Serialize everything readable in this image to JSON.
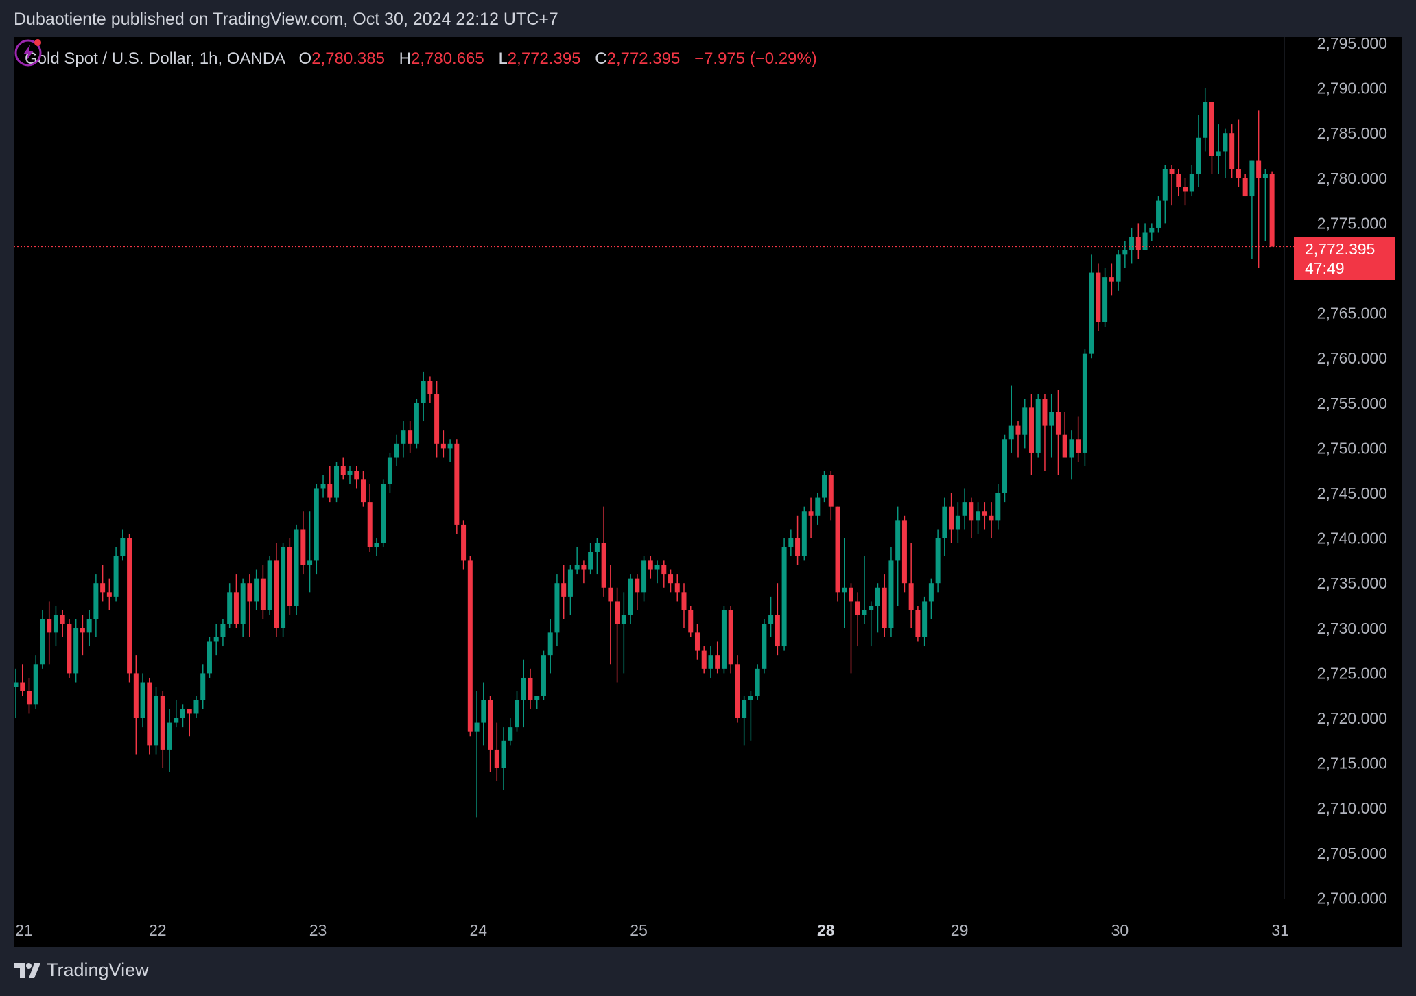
{
  "header": {
    "published": "Dubaotiente published on TradingView.com, Oct 30, 2024 22:12 UTC+7"
  },
  "legend": {
    "symbol": "Gold Spot / U.S. Dollar, 1h, OANDA",
    "o_label": "O",
    "o_value": "2,780.385",
    "h_label": "H",
    "h_value": "2,780.665",
    "l_label": "L",
    "l_value": "2,772.395",
    "c_label": "C",
    "c_value": "2,772.395",
    "change": "−7.975 (−0.29%)"
  },
  "last_price": {
    "value": "2,772.395",
    "countdown": "47:49"
  },
  "footer": {
    "brand": "TradingView"
  },
  "colors": {
    "up": "#089981",
    "down": "#f23645",
    "background": "#000000",
    "frame": "#1e222d",
    "axis_text": "#b2b5be"
  },
  "icons": {
    "brand_icon": "tradingview-logo-icon",
    "alert_icon": "lightning-bolt-icon"
  },
  "chart_data": {
    "type": "candlestick",
    "symbol": "Gold Spot / U.S. Dollar",
    "interval": "1h",
    "exchange": "OANDA",
    "ylim": [
      2697,
      2797
    ],
    "y_ticks": [
      2700,
      2705,
      2710,
      2715,
      2720,
      2725,
      2730,
      2735,
      2740,
      2745,
      2750,
      2755,
      2760,
      2765,
      2770,
      2775,
      2780,
      2785,
      2790,
      2795
    ],
    "y_tick_labels": [
      "2,700.000",
      "2,705.000",
      "2,710.000",
      "2,715.000",
      "2,720.000",
      "2,725.000",
      "2,730.000",
      "2,735.000",
      "2,740.000",
      "2,745.000",
      "2,750.000",
      "2,755.000",
      "2,760.000",
      "2,765.000",
      "2,770.000",
      "2,775.000",
      "2,780.000",
      "2,785.000",
      "2,790.000",
      "2,795.000"
    ],
    "x_ticks": [
      {
        "label": "21",
        "index": 0,
        "bold": false
      },
      {
        "label": "22",
        "index": 20,
        "bold": false
      },
      {
        "label": "23",
        "index": 44,
        "bold": false
      },
      {
        "label": "24",
        "index": 68,
        "bold": false
      },
      {
        "label": "25",
        "index": 92,
        "bold": false
      },
      {
        "label": "28",
        "index": 120,
        "bold": true
      },
      {
        "label": "29",
        "index": 140,
        "bold": false
      },
      {
        "label": "30",
        "index": 164,
        "bold": false
      },
      {
        "label": "31",
        "index": 188,
        "bold": false
      }
    ],
    "last_close": 2772.395,
    "candles": [
      [
        2723.5,
        2725.5,
        2720,
        2724
      ],
      [
        2724,
        2726,
        2722.5,
        2723
      ],
      [
        2723,
        2724.5,
        2720.5,
        2721.5
      ],
      [
        2721.5,
        2727,
        2721,
        2726
      ],
      [
        2726,
        2732,
        2725.5,
        2731
      ],
      [
        2731,
        2733,
        2726,
        2729.5
      ],
      [
        2729.5,
        2732.5,
        2728,
        2731.5
      ],
      [
        2731.5,
        2732,
        2729,
        2730.5
      ],
      [
        2730.5,
        2731,
        2724.5,
        2725
      ],
      [
        2725,
        2731,
        2724,
        2730
      ],
      [
        2730,
        2731.5,
        2727,
        2729.5
      ],
      [
        2729.5,
        2732,
        2728,
        2731
      ],
      [
        2731,
        2736,
        2729,
        2735
      ],
      [
        2735,
        2737,
        2733,
        2734
      ],
      [
        2734,
        2735.5,
        2732,
        2733.5
      ],
      [
        2733.5,
        2739,
        2733,
        2738
      ],
      [
        2738,
        2741,
        2737.5,
        2740
      ],
      [
        2740,
        2740.5,
        2724,
        2725
      ],
      [
        2725,
        2727,
        2716,
        2720
      ],
      [
        2720,
        2725,
        2719,
        2724
      ],
      [
        2724,
        2724.5,
        2716,
        2717
      ],
      [
        2717,
        2723.5,
        2716,
        2722.5
      ],
      [
        2722.5,
        2723,
        2714.5,
        2716.5
      ],
      [
        2716.5,
        2721,
        2714,
        2719.5
      ],
      [
        2719.5,
        2722,
        2719,
        2720
      ],
      [
        2720,
        2721.5,
        2719,
        2721
      ],
      [
        2721,
        2721,
        2718,
        2720.5
      ],
      [
        2720.5,
        2722.5,
        2720,
        2722
      ],
      [
        2722,
        2726,
        2721,
        2725
      ],
      [
        2725,
        2729,
        2724.5,
        2728.5
      ],
      [
        2728.5,
        2730.5,
        2727,
        2729
      ],
      [
        2729,
        2731,
        2728,
        2730.5
      ],
      [
        2730.5,
        2735,
        2730,
        2734
      ],
      [
        2734,
        2736,
        2730,
        2730.5
      ],
      [
        2730.5,
        2735.5,
        2729,
        2735
      ],
      [
        2735,
        2736,
        2729,
        2733
      ],
      [
        2733,
        2736.5,
        2732,
        2735.5
      ],
      [
        2735.5,
        2737,
        2731,
        2732
      ],
      [
        2732,
        2738,
        2731.5,
        2737.5
      ],
      [
        2737.5,
        2739.5,
        2729,
        2730
      ],
      [
        2730,
        2739.5,
        2729,
        2739
      ],
      [
        2739,
        2740,
        2731.5,
        2732.5
      ],
      [
        2732.5,
        2741.5,
        2731.5,
        2741
      ],
      [
        2741,
        2743,
        2736,
        2737
      ],
      [
        2737,
        2743,
        2734,
        2737.5
      ],
      [
        2737.5,
        2746,
        2736,
        2745.5
      ],
      [
        2745.5,
        2747,
        2744.5,
        2746
      ],
      [
        2746,
        2748,
        2744,
        2744.5
      ],
      [
        2744.5,
        2748.5,
        2744,
        2748
      ],
      [
        2748,
        2749,
        2746.5,
        2747
      ],
      [
        2747,
        2748,
        2746,
        2747.5
      ],
      [
        2747.5,
        2748,
        2745.5,
        2746.5
      ],
      [
        2746.5,
        2747.5,
        2743.5,
        2744
      ],
      [
        2744,
        2746,
        2738.5,
        2739
      ],
      [
        2739,
        2740,
        2738,
        2739.5
      ],
      [
        2739.5,
        2746.5,
        2739,
        2746
      ],
      [
        2746,
        2749.5,
        2745,
        2749
      ],
      [
        2749,
        2751.5,
        2748,
        2750.5
      ],
      [
        2750.5,
        2753,
        2749,
        2752
      ],
      [
        2752,
        2753,
        2749.5,
        2750.5
      ],
      [
        2750.5,
        2755.5,
        2750,
        2755
      ],
      [
        2755,
        2758.5,
        2753,
        2757.5
      ],
      [
        2757.5,
        2758,
        2755,
        2756
      ],
      [
        2756,
        2757.5,
        2749,
        2750.5
      ],
      [
        2750.5,
        2752,
        2749,
        2750
      ],
      [
        2750,
        2751,
        2748.5,
        2750.5
      ],
      [
        2750.5,
        2751,
        2740.5,
        2741.5
      ],
      [
        2741.5,
        2742,
        2736.5,
        2737.5
      ],
      [
        2737.5,
        2738,
        2718,
        2718.5
      ],
      [
        2718.5,
        2723,
        2709,
        2719.5
      ],
      [
        2719.5,
        2724,
        2717,
        2722
      ],
      [
        2722,
        2722.5,
        2714,
        2716.5
      ],
      [
        2716.5,
        2719.5,
        2713,
        2714.5
      ],
      [
        2714.5,
        2719,
        2712,
        2717.5
      ],
      [
        2717.5,
        2720,
        2717,
        2719
      ],
      [
        2719,
        2723,
        2718.5,
        2722
      ],
      [
        2722,
        2726.5,
        2719,
        2724.5
      ],
      [
        2724.5,
        2725.5,
        2721,
        2722
      ],
      [
        2722,
        2722.5,
        2721,
        2722.5
      ],
      [
        2722.5,
        2727.5,
        2722,
        2727
      ],
      [
        2727,
        2731,
        2725,
        2729.5
      ],
      [
        2729.5,
        2736,
        2728,
        2735
      ],
      [
        2735,
        2737,
        2731,
        2733.5
      ],
      [
        2733.5,
        2737,
        2731.5,
        2736.5
      ],
      [
        2736.5,
        2739,
        2736,
        2737
      ],
      [
        2737,
        2737.5,
        2735,
        2736.5
      ],
      [
        2736.5,
        2739.5,
        2736,
        2738.5
      ],
      [
        2738.5,
        2740,
        2736,
        2739.5
      ],
      [
        2739.5,
        2743.5,
        2733.5,
        2734.5
      ],
      [
        2734.5,
        2737,
        2726,
        2733
      ],
      [
        2733,
        2734.5,
        2724,
        2730.5
      ],
      [
        2730.5,
        2734,
        2725,
        2731.5
      ],
      [
        2731.5,
        2736,
        2730.5,
        2735.5
      ],
      [
        2735.5,
        2736,
        2732,
        2734
      ],
      [
        2734,
        2738,
        2733,
        2737.5
      ],
      [
        2737.5,
        2738,
        2735.5,
        2736.5
      ],
      [
        2736.5,
        2737.5,
        2735,
        2737
      ],
      [
        2737,
        2737.5,
        2734.5,
        2736
      ],
      [
        2736,
        2736.5,
        2734,
        2735
      ],
      [
        2735,
        2736,
        2733,
        2734
      ],
      [
        2734,
        2735,
        2730,
        2732
      ],
      [
        2732,
        2732.5,
        2729,
        2729.5
      ],
      [
        2729.5,
        2730.5,
        2726.5,
        2727.5
      ],
      [
        2727.5,
        2728,
        2725,
        2725.5
      ],
      [
        2725.5,
        2728,
        2724.5,
        2727
      ],
      [
        2727,
        2728.5,
        2725,
        2725.5
      ],
      [
        2725.5,
        2732.5,
        2725,
        2732
      ],
      [
        2732,
        2732.5,
        2725,
        2726
      ],
      [
        2726,
        2727,
        2719.5,
        2720
      ],
      [
        2720,
        2722.5,
        2717,
        2722
      ],
      [
        2722,
        2723,
        2717.5,
        2722.5
      ],
      [
        2722.5,
        2726,
        2722,
        2725.5
      ],
      [
        2725.5,
        2731,
        2725,
        2730.5
      ],
      [
        2730.5,
        2733.5,
        2729,
        2731.5
      ],
      [
        2731.5,
        2735,
        2727,
        2728
      ],
      [
        2728,
        2740,
        2727.5,
        2739
      ],
      [
        2739,
        2741,
        2738,
        2740
      ],
      [
        2740,
        2742.5,
        2737,
        2738
      ],
      [
        2738,
        2743.5,
        2737.5,
        2743
      ],
      [
        2743,
        2744.5,
        2740,
        2742.5
      ],
      [
        2742.5,
        2745,
        2741.5,
        2744.5
      ],
      [
        2744.5,
        2747.5,
        2744,
        2747
      ],
      [
        2747,
        2747.5,
        2742,
        2743.5
      ],
      [
        2743.5,
        2743.5,
        2733,
        2734
      ],
      [
        2734,
        2740,
        2730,
        2734.5
      ],
      [
        2734.5,
        2735,
        2725,
        2733
      ],
      [
        2733,
        2734,
        2728,
        2731.5
      ],
      [
        2731.5,
        2738,
        2730.5,
        2732
      ],
      [
        2732,
        2733,
        2728,
        2732.5
      ],
      [
        2732.5,
        2735,
        2729.5,
        2734.5
      ],
      [
        2734.5,
        2736,
        2729,
        2730
      ],
      [
        2730,
        2739,
        2729,
        2737.5
      ],
      [
        2737.5,
        2743.5,
        2732.5,
        2742
      ],
      [
        2742,
        2742.5,
        2734,
        2735
      ],
      [
        2735,
        2739.5,
        2730,
        2732
      ],
      [
        2732,
        2732.5,
        2728.5,
        2729
      ],
      [
        2729,
        2733.5,
        2728,
        2733
      ],
      [
        2733,
        2735.5,
        2731,
        2735
      ],
      [
        2735,
        2741,
        2734,
        2740
      ],
      [
        2740,
        2744.5,
        2738,
        2743.5
      ],
      [
        2743.5,
        2745,
        2739.5,
        2741
      ],
      [
        2741,
        2744,
        2739.5,
        2742.5
      ],
      [
        2742.5,
        2745.5,
        2741,
        2744
      ],
      [
        2744,
        2744.5,
        2740,
        2742
      ],
      [
        2742,
        2744,
        2740.5,
        2743
      ],
      [
        2743,
        2744,
        2741,
        2742.5
      ],
      [
        2742.5,
        2744,
        2740,
        2742
      ],
      [
        2742,
        2746,
        2741,
        2745
      ],
      [
        2745,
        2751.5,
        2744,
        2751
      ],
      [
        2751,
        2757,
        2749.5,
        2752.5
      ],
      [
        2752.5,
        2753,
        2749,
        2751.5
      ],
      [
        2751.5,
        2755.5,
        2750,
        2754.5
      ],
      [
        2754.5,
        2756,
        2747,
        2749.5
      ],
      [
        2749.5,
        2756,
        2749,
        2755.5
      ],
      [
        2755.5,
        2756,
        2747.5,
        2752.5
      ],
      [
        2752.5,
        2756,
        2749,
        2754
      ],
      [
        2754,
        2756.5,
        2747,
        2751.5
      ],
      [
        2751.5,
        2754,
        2749,
        2749
      ],
      [
        2749,
        2752,
        2746.5,
        2751
      ],
      [
        2751,
        2753.5,
        2748.5,
        2749.5
      ],
      [
        2749.5,
        2761,
        2748,
        2760.5
      ],
      [
        2760.5,
        2771.5,
        2760,
        2769.5
      ],
      [
        2769.5,
        2770.5,
        2763,
        2764
      ],
      [
        2764,
        2770,
        2763.5,
        2769
      ],
      [
        2769,
        2770.5,
        2767,
        2768.5
      ],
      [
        2768.5,
        2772,
        2767.5,
        2771.5
      ],
      [
        2771.5,
        2773,
        2770,
        2772
      ],
      [
        2772,
        2774.5,
        2770.5,
        2773.5
      ],
      [
        2773.5,
        2775,
        2771,
        2772
      ],
      [
        2772,
        2775,
        2772,
        2774
      ],
      [
        2774,
        2775,
        2773,
        2774.5
      ],
      [
        2774.5,
        2778,
        2774,
        2777.5
      ],
      [
        2777.5,
        2781.5,
        2775,
        2781
      ],
      [
        2781,
        2781.5,
        2777,
        2780.5
      ],
      [
        2780.5,
        2781,
        2778,
        2779
      ],
      [
        2779,
        2780,
        2777,
        2778.5
      ],
      [
        2778.5,
        2781.5,
        2778,
        2780.5
      ],
      [
        2780.5,
        2787,
        2779,
        2784.5
      ],
      [
        2784.5,
        2790,
        2783,
        2788.5
      ],
      [
        2788.5,
        2788.5,
        2780.5,
        2782.5
      ],
      [
        2782.5,
        2786,
        2780.5,
        2783
      ],
      [
        2783,
        2785.5,
        2780,
        2785
      ],
      [
        2785,
        2786,
        2780,
        2781
      ],
      [
        2781,
        2786.5,
        2779,
        2780
      ],
      [
        2780,
        2780.5,
        2778,
        2778
      ],
      [
        2778,
        2782,
        2771,
        2782
      ],
      [
        2782,
        2787.5,
        2770,
        2780
      ],
      [
        2780,
        2781,
        2773,
        2780.5
      ],
      [
        2780.5,
        2780.7,
        2772.4,
        2772.4
      ]
    ]
  }
}
